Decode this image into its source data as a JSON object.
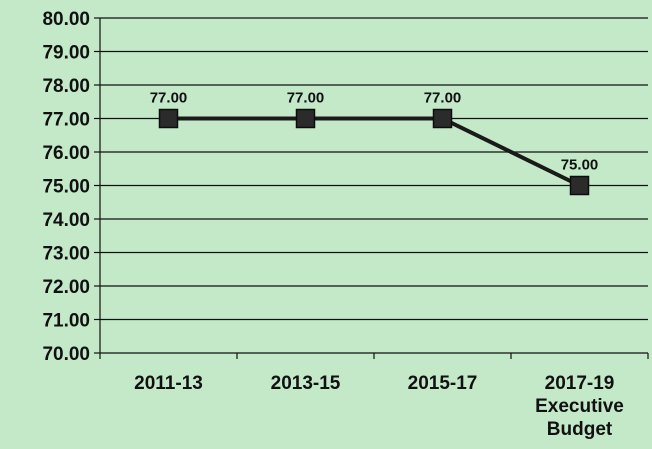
{
  "chart_data": {
    "type": "line",
    "categories": [
      [
        "2011-13"
      ],
      [
        "2013-15"
      ],
      [
        "2015-17"
      ],
      [
        "2017-19",
        "Executive",
        "Budget"
      ]
    ],
    "series": [
      {
        "values": [
          77.0,
          77.0,
          77.0,
          75.0
        ],
        "color": "#1a1a1a"
      }
    ],
    "data_labels": [
      "77.00",
      "77.00",
      "77.00",
      "75.00"
    ],
    "yticks": [
      "70.00",
      "71.00",
      "72.00",
      "73.00",
      "74.00",
      "75.00",
      "76.00",
      "77.00",
      "78.00",
      "79.00",
      "80.00"
    ],
    "ylim": [
      70,
      80
    ],
    "grid": true,
    "legend": "none",
    "colors": {
      "background": "#c3e9c9",
      "line": "#1a1a1a",
      "grid": "#111111"
    }
  }
}
